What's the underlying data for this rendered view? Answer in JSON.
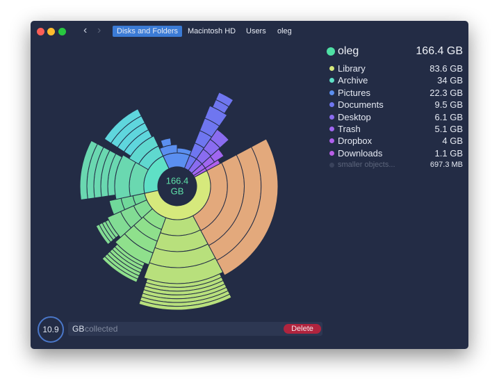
{
  "window": {
    "breadcrumb": [
      "Disks and Folders",
      "Macintosh HD",
      "Users",
      "oleg"
    ]
  },
  "center": {
    "size": "166.4",
    "unit": "GB"
  },
  "summary": {
    "name": "oleg",
    "size": "166.4 GB",
    "color": "#4fe0a4"
  },
  "items": [
    {
      "name": "Library",
      "size": "83.6 GB",
      "color": "#d6e97c"
    },
    {
      "name": "Archive",
      "size": "34 GB",
      "color": "#5fe0c6"
    },
    {
      "name": "Pictures",
      "size": "22.3 GB",
      "color": "#5b8ff0"
    },
    {
      "name": "Documents",
      "size": "9.5 GB",
      "color": "#6f76f0"
    },
    {
      "name": "Desktop",
      "size": "6.1 GB",
      "color": "#8a6cf0"
    },
    {
      "name": "Trash",
      "size": "5.1 GB",
      "color": "#a066f0"
    },
    {
      "name": "Dropbox",
      "size": "4 GB",
      "color": "#b060ee"
    },
    {
      "name": "Downloads",
      "size": "1.1 GB",
      "color": "#b95ee6"
    }
  ],
  "smaller": {
    "name": "smaller objects...",
    "size": "697.3 MB"
  },
  "collector": {
    "amount": "10.9",
    "unit": "GB",
    "label": "collected",
    "button": "Delete"
  }
}
